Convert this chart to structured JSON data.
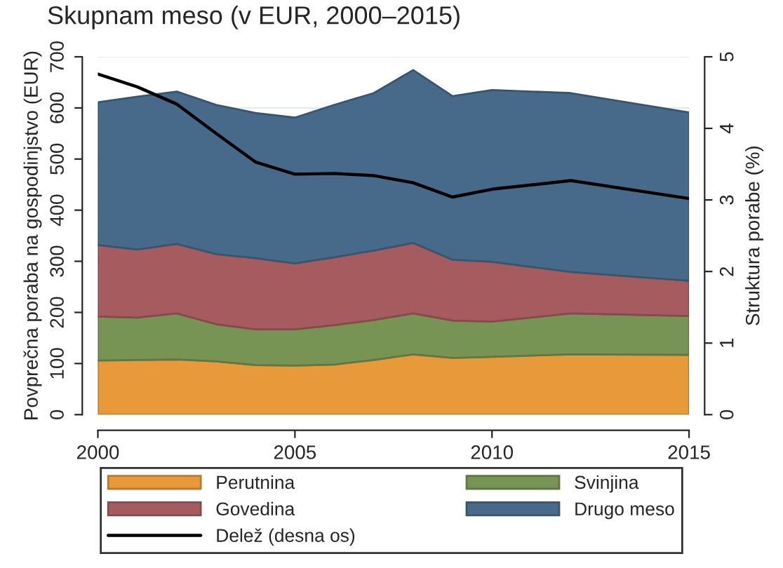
{
  "chart_data": {
    "type": "area",
    "stacked": true,
    "title": "Skupnam meso (v EUR, 2000–2015)",
    "ylabel": "Povprečna poraba na gospodinjstvo (EUR)",
    "y2label": "Struktura porabe (%)",
    "x": [
      2000,
      2001,
      2002,
      2003,
      2004,
      2005,
      2006,
      2007,
      2008,
      2009,
      2010,
      2012,
      2015
    ],
    "xlim": [
      2000,
      2015
    ],
    "xticks": [
      2000,
      2005,
      2010,
      2015
    ],
    "ylim": [
      0,
      700
    ],
    "yticks": [
      0,
      100,
      200,
      300,
      400,
      500,
      600,
      700
    ],
    "y2lim": [
      0,
      5
    ],
    "y2ticks": [
      0,
      1,
      2,
      3,
      4,
      5
    ],
    "grid": "y",
    "legend": "bottom",
    "series": [
      {
        "name": "Perutnina",
        "color": "#e8993a",
        "values": [
          106,
          107,
          108,
          104,
          97,
          96,
          98,
          107,
          118,
          111,
          113,
          118,
          117
        ]
      },
      {
        "name": "Svinjina",
        "color": "#789454",
        "values": [
          86,
          83,
          90,
          73,
          70,
          71,
          77,
          78,
          80,
          73,
          69,
          80,
          76
        ]
      },
      {
        "name": "Govedina",
        "color": "#a65c5f",
        "values": [
          140,
          133,
          136,
          137,
          139,
          129,
          133,
          136,
          138,
          119,
          117,
          81,
          69
        ]
      },
      {
        "name": "Drugo meso",
        "color": "#476a8a",
        "values": [
          279,
          299,
          298,
          292,
          284,
          285,
          298,
          308,
          338,
          320,
          336,
          350,
          329
        ]
      },
      {
        "name": "Delež (desna os)",
        "type": "line",
        "axis": "y2",
        "color": "#000000",
        "values": [
          4.76,
          4.58,
          4.34,
          3.93,
          3.53,
          3.36,
          3.37,
          3.34,
          3.24,
          3.04,
          3.15,
          3.27,
          3.02
        ]
      }
    ]
  }
}
